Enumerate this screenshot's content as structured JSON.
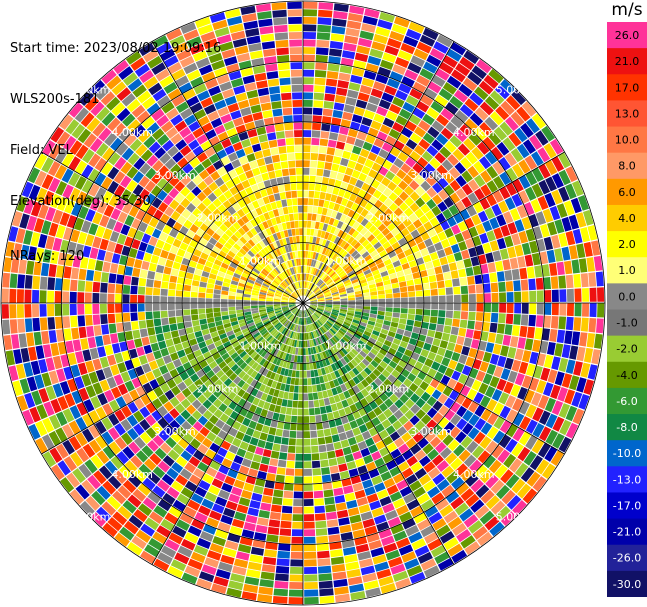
{
  "header": {
    "start_time": "Start time: 2023/08/02 19:09:16",
    "instrument": "WLS200s-181",
    "field": "Field: VEL",
    "elevation": "Elevation(deg): 35.30",
    "nrays": "NRays: 120"
  },
  "chart_data": {
    "type": "ppi",
    "field": "VEL",
    "units": "m/s",
    "n_rays": 120,
    "max_range_km": 5.0,
    "range_rings_km": [
      1.0,
      2.0,
      3.0,
      4.0,
      5.0
    ],
    "ring_labels": [
      "1.00km",
      "2.00km",
      "3.00km",
      "4.00km",
      "5.00km"
    ],
    "spokes_deg": [
      0,
      30,
      60,
      90,
      120,
      150,
      180,
      210,
      240,
      270,
      300,
      330
    ],
    "colorbar": {
      "ticks": [
        "26.0",
        "21.0",
        "17.0",
        "13.0",
        "10.0",
        "8.0",
        "6.0",
        "4.0",
        "2.0",
        "1.0",
        "0.0",
        "-1.0",
        "-2.0",
        "-4.0",
        "-6.0",
        "-8.0",
        "-10.0",
        "-13.0",
        "-17.0",
        "-21.0",
        "-26.0",
        "-30.0"
      ],
      "colors": [
        "#ff3399",
        "#ee1111",
        "#ff3300",
        "#ff5533",
        "#ff7744",
        "#ff9966",
        "#ff9900",
        "#ffcc00",
        "#ffff00",
        "#ffff77",
        "#888888",
        "#777777",
        "#99cc33",
        "#669900",
        "#339933",
        "#118844",
        "#0066cc",
        "#2222ff",
        "#0000cc",
        "#0000aa",
        "#222299",
        "#111166"
      ]
    },
    "pattern": {
      "near_field_km": 2.4,
      "positive_sector": "north (approaching, +1 to +8 m/s)",
      "negative_sector": "south (receding, -1 to -8 m/s)",
      "far_field": "noisy / random velocities beyond ~2.5 km"
    }
  }
}
